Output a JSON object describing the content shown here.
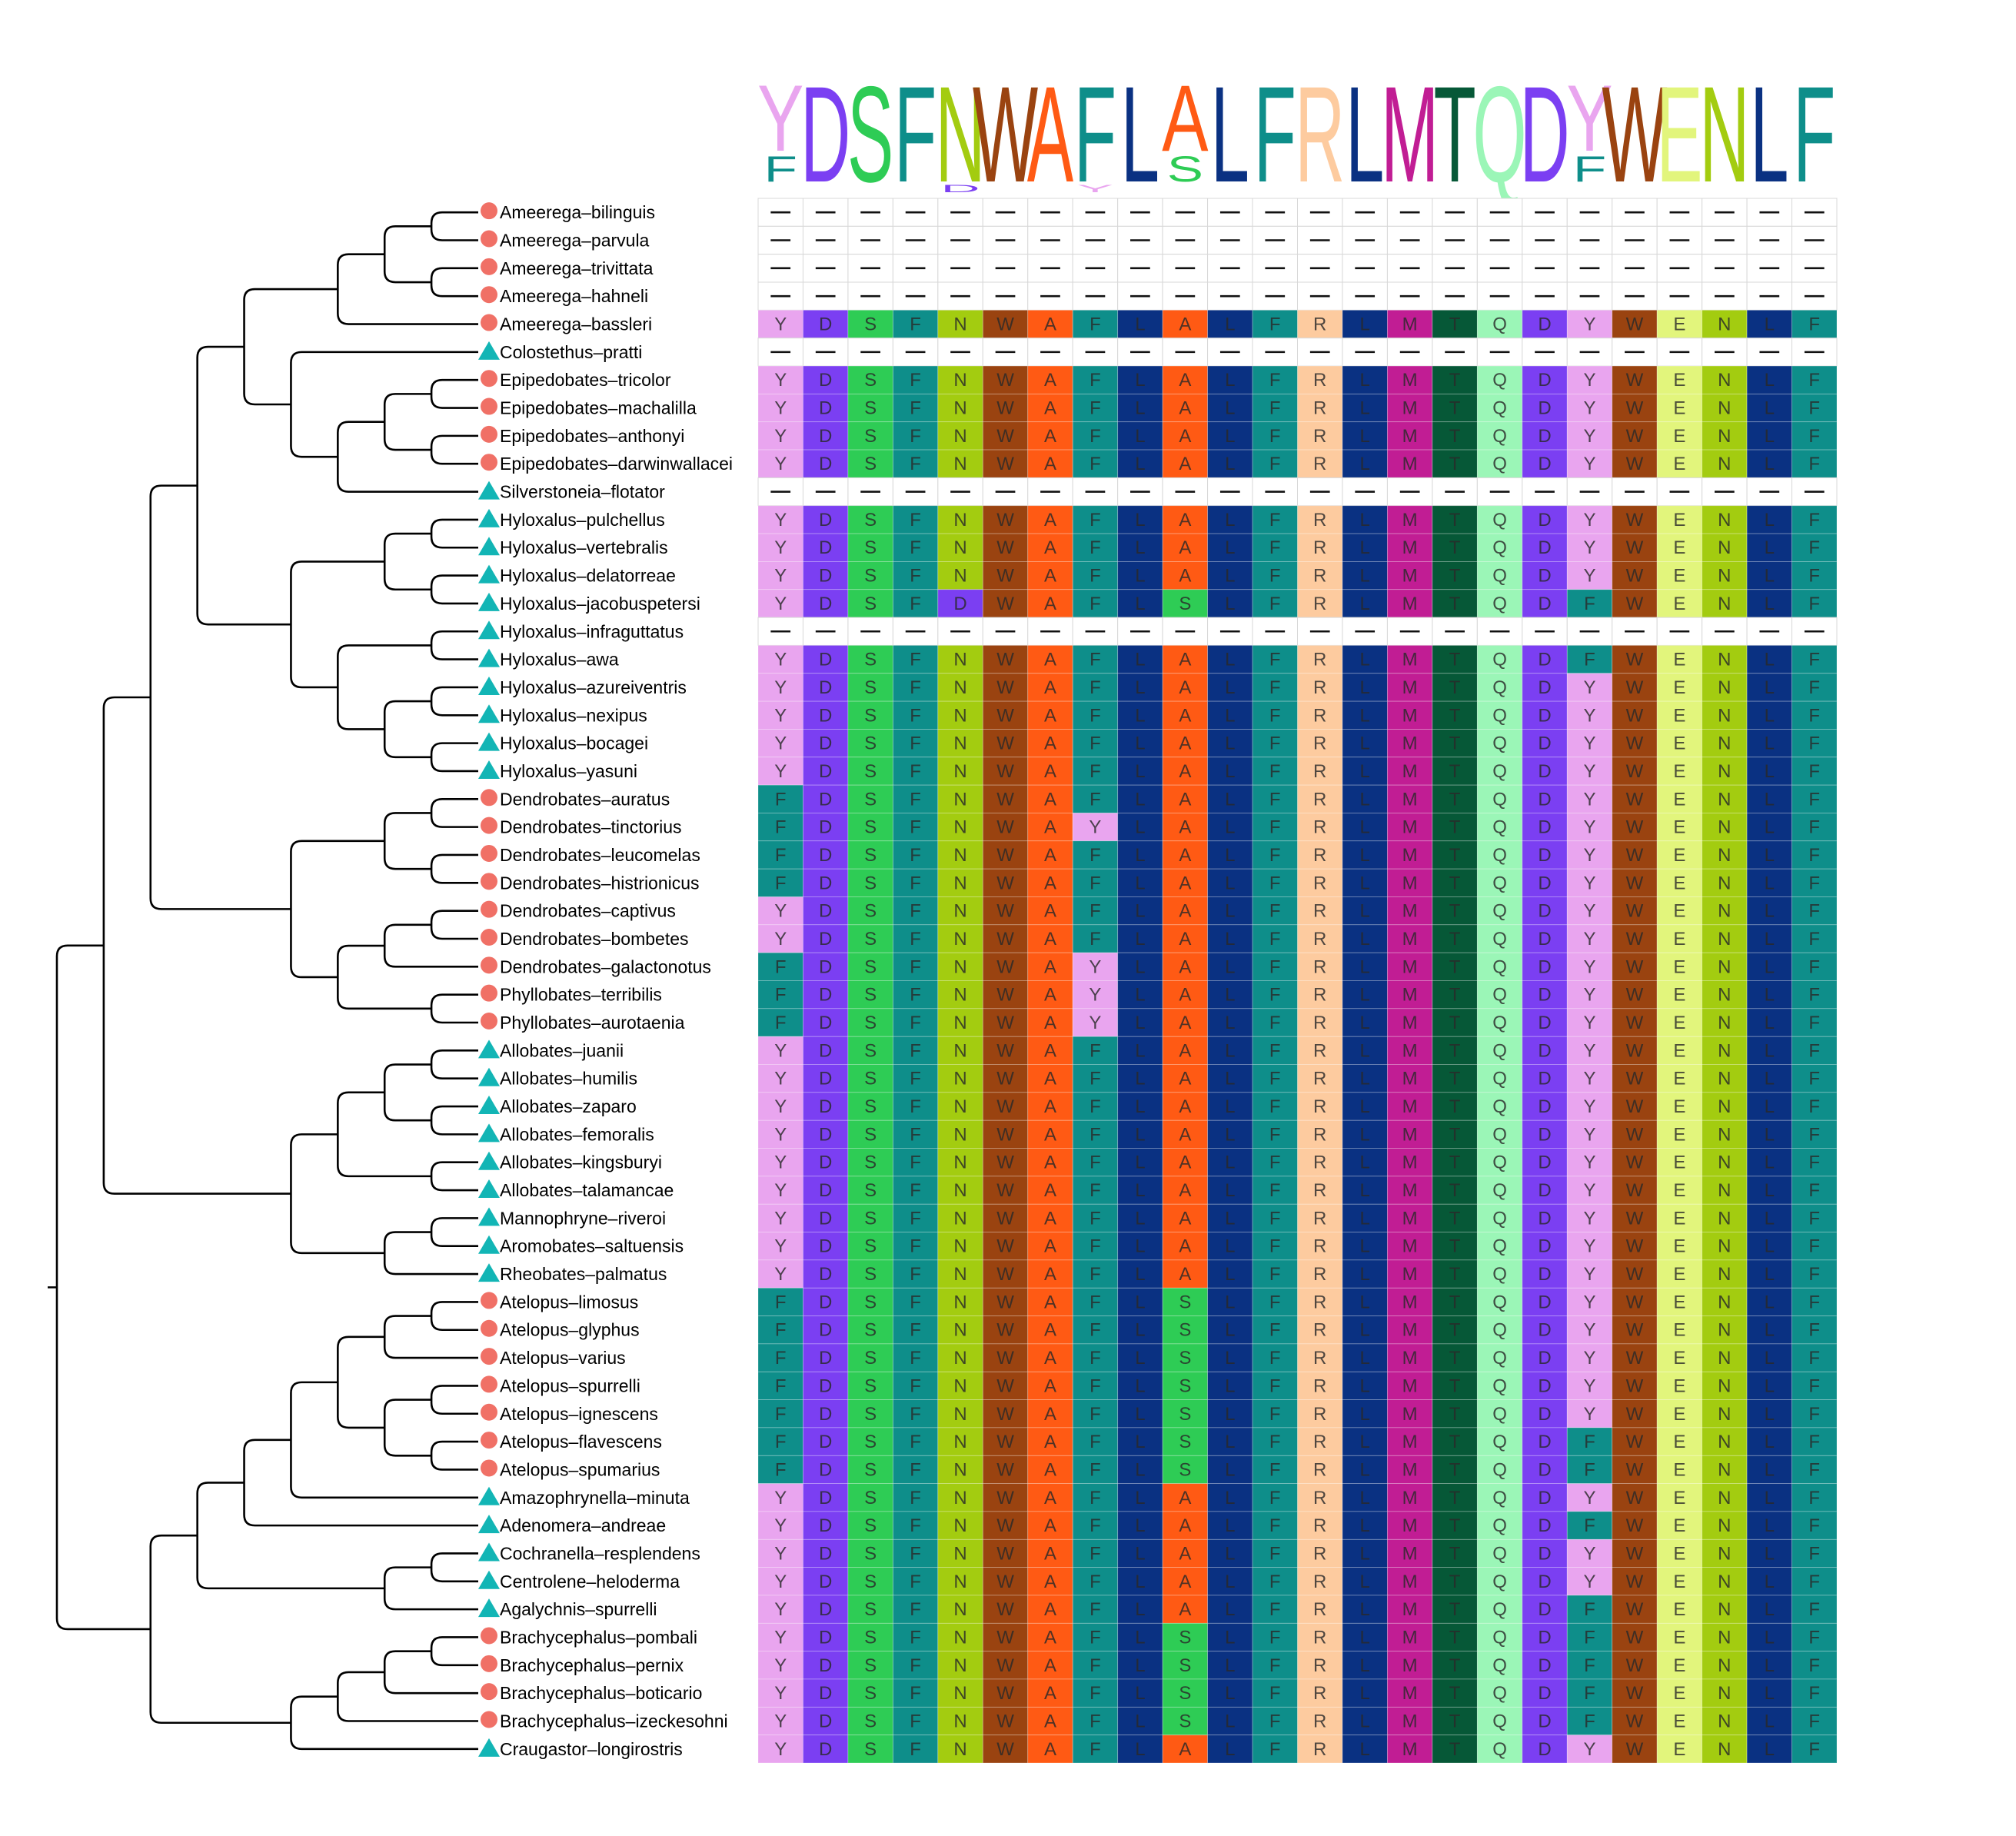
{
  "logo": [
    {
      "main": "Y",
      "minor": "F"
    },
    {
      "main": "D"
    },
    {
      "main": "S"
    },
    {
      "main": "F"
    },
    {
      "main": "N",
      "minor": "D",
      "minor_below": true
    },
    {
      "main": "W"
    },
    {
      "main": "A"
    },
    {
      "main": "F",
      "minor": "Y",
      "minor_below": true
    },
    {
      "main": "L"
    },
    {
      "main": "A",
      "minor": "S"
    },
    {
      "main": "L"
    },
    {
      "main": "F"
    },
    {
      "main": "R"
    },
    {
      "main": "L"
    },
    {
      "main": "M"
    },
    {
      "main": "T"
    },
    {
      "main": "Q"
    },
    {
      "main": "D"
    },
    {
      "main": "Y",
      "minor": "F"
    },
    {
      "main": "W"
    },
    {
      "main": "E"
    },
    {
      "main": "N"
    },
    {
      "main": "L"
    },
    {
      "main": "F"
    }
  ],
  "colors": {
    "Y": "#e9a5ef",
    "D": "#7b3ff2",
    "S": "#2ecc55",
    "F": "#0e8e8a",
    "N": "#a3cc10",
    "W": "#9a4310",
    "A": "#ff5a14",
    "L": "#0a3182",
    "R": "#fdcb9f",
    "M": "#c11d94",
    "T": "#065837",
    "Q": "#9bf6b7",
    "E": "#e2f57c",
    "gap": "#ffffff"
  },
  "markers": {
    "circle": "#f07066",
    "triangle": "#12b5b5"
  },
  "sequences": [
    {
      "name": "Ameerega–bilinguis",
      "marker": "circle",
      "seq": "------------------------"
    },
    {
      "name": "Ameerega–parvula",
      "marker": "circle",
      "seq": "------------------------"
    },
    {
      "name": "Ameerega–trivittata",
      "marker": "circle",
      "seq": "------------------------"
    },
    {
      "name": "Ameerega–hahneli",
      "marker": "circle",
      "seq": "------------------------"
    },
    {
      "name": "Ameerega–bassleri",
      "marker": "circle",
      "seq": "YDSFNWAFLALFRLMTQDYWENLF"
    },
    {
      "name": "Colostethus–pratti",
      "marker": "triangle",
      "seq": "------------------------"
    },
    {
      "name": "Epipedobates–tricolor",
      "marker": "circle",
      "seq": "YDSFNWAFLALFRLMTQDYWENLF"
    },
    {
      "name": "Epipedobates–machalilla",
      "marker": "circle",
      "seq": "YDSFNWAFLALFRLMTQDYWENLF"
    },
    {
      "name": "Epipedobates–anthonyi",
      "marker": "circle",
      "seq": "YDSFNWAFLALFRLMTQDYWENLF"
    },
    {
      "name": "Epipedobates–darwinwallacei",
      "marker": "circle",
      "seq": "YDSFNWAFLALFRLMTQDYWENLF"
    },
    {
      "name": "Silverstoneia–flotator",
      "marker": "triangle",
      "seq": "------------------------"
    },
    {
      "name": "Hyloxalus–pulchellus",
      "marker": "triangle",
      "seq": "YDSFNWAFLALFRLMTQDYWENLF"
    },
    {
      "name": "Hyloxalus–vertebralis",
      "marker": "triangle",
      "seq": "YDSFNWAFLALFRLMTQDYWENLF"
    },
    {
      "name": "Hyloxalus–delatorreae",
      "marker": "triangle",
      "seq": "YDSFNWAFLALFRLMTQDYWENLF"
    },
    {
      "name": "Hyloxalus–jacobuspetersi",
      "marker": "triangle",
      "seq": "YDSFDWAFLSLFRLMTQDFWENLF"
    },
    {
      "name": "Hyloxalus–infraguttatus",
      "marker": "triangle",
      "seq": "------------------------"
    },
    {
      "name": "Hyloxalus–awa",
      "marker": "triangle",
      "seq": "YDSFNWAFLALFRLMTQDFWENLF"
    },
    {
      "name": "Hyloxalus–azureiventris",
      "marker": "triangle",
      "seq": "YDSFNWAFLALFRLMTQDYWENLF"
    },
    {
      "name": "Hyloxalus–nexipus",
      "marker": "triangle",
      "seq": "YDSFNWAFLALFRLMTQDYWENLF"
    },
    {
      "name": "Hyloxalus–bocagei",
      "marker": "triangle",
      "seq": "YDSFNWAFLALFRLMTQDYWENLF"
    },
    {
      "name": "Hyloxalus–yasuni",
      "marker": "triangle",
      "seq": "YDSFNWAFLALFRLMTQDYWENLF"
    },
    {
      "name": "Dendrobates–auratus",
      "marker": "circle",
      "seq": "FDSFNWAFLALFRLMTQDYWENLF"
    },
    {
      "name": "Dendrobates–tinctorius",
      "marker": "circle",
      "seq": "FDSFNWAYLALFRLMTQDYWENLF"
    },
    {
      "name": "Dendrobates–leucomelas",
      "marker": "circle",
      "seq": "FDSFNWAFLALFRLMTQDYWENLF"
    },
    {
      "name": "Dendrobates–histrionicus",
      "marker": "circle",
      "seq": "FDSFNWAFLALFRLMTQDYWENLF"
    },
    {
      "name": "Dendrobates–captivus",
      "marker": "circle",
      "seq": "YDSFNWAFLALFRLMTQDYWENLF"
    },
    {
      "name": "Dendrobates–bombetes",
      "marker": "circle",
      "seq": "YDSFNWAFLALFRLMTQDYWENLF"
    },
    {
      "name": "Dendrobates–galactonotus",
      "marker": "circle",
      "seq": "FDSFNWAYLALFRLMTQDYWENLF"
    },
    {
      "name": "Phyllobates–terribilis",
      "marker": "circle",
      "seq": "FDSFNWAYLALFRLMTQDYWENLF"
    },
    {
      "name": "Phyllobates–aurotaenia",
      "marker": "circle",
      "seq": "FDSFNWAYLALFRLMTQDYWENLF"
    },
    {
      "name": "Allobates–juanii",
      "marker": "triangle",
      "seq": "YDSFNWAFLALFRLMTQDYWENLF"
    },
    {
      "name": "Allobates–humilis",
      "marker": "triangle",
      "seq": "YDSFNWAFLALFRLMTQDYWENLF"
    },
    {
      "name": "Allobates–zaparo",
      "marker": "triangle",
      "seq": "YDSFNWAFLALFRLMTQDYWENLF"
    },
    {
      "name": "Allobates–femoralis",
      "marker": "triangle",
      "seq": "YDSFNWAFLALFRLMTQDYWENLF"
    },
    {
      "name": "Allobates–kingsburyi",
      "marker": "triangle",
      "seq": "YDSFNWAFLALFRLMTQDYWENLF"
    },
    {
      "name": "Allobates–talamancae",
      "marker": "triangle",
      "seq": "YDSFNWAFLALFRLMTQDYWENLF"
    },
    {
      "name": "Mannophryne–riveroi",
      "marker": "triangle",
      "seq": "YDSFNWAFLALFRLMTQDYWENLF"
    },
    {
      "name": "Aromobates–saltuensis",
      "marker": "triangle",
      "seq": "YDSFNWAFLALFRLMTQDYWENLF"
    },
    {
      "name": "Rheobates–palmatus",
      "marker": "triangle",
      "seq": "YDSFNWAFLALFRLMTQDYWENLF"
    },
    {
      "name": "Atelopus–limosus",
      "marker": "circle",
      "seq": "FDSFNWAFLSLFRLMTQDYWENLF"
    },
    {
      "name": "Atelopus–glyphus",
      "marker": "circle",
      "seq": "FDSFNWAFLSLFRLMTQDYWENLF"
    },
    {
      "name": "Atelopus–varius",
      "marker": "circle",
      "seq": "FDSFNWAFLSLFRLMTQDYWENLF"
    },
    {
      "name": "Atelopus–spurrelli",
      "marker": "circle",
      "seq": "FDSFNWAFLSLFRLMTQDYWENLF"
    },
    {
      "name": "Atelopus–ignescens",
      "marker": "circle",
      "seq": "FDSFNWAFLSLFRLMTQDYWENLF"
    },
    {
      "name": "Atelopus–flavescens",
      "marker": "circle",
      "seq": "FDSFNWAFLSLFRLMTQDFWENLF"
    },
    {
      "name": "Atelopus–spumarius",
      "marker": "circle",
      "seq": "FDSFNWAFLSLFRLMTQDFWENLF"
    },
    {
      "name": "Amazophrynella–minuta",
      "marker": "triangle",
      "seq": "YDSFNWAFLALFRLMTQDYWENLF"
    },
    {
      "name": "Adenomera–andreae",
      "marker": "triangle",
      "seq": "YDSFNWAFLALFRLMTQDFWENLF"
    },
    {
      "name": "Cochranella–resplendens",
      "marker": "triangle",
      "seq": "YDSFNWAFLALFRLMTQDYWENLF"
    },
    {
      "name": "Centrolene–heloderma",
      "marker": "triangle",
      "seq": "YDSFNWAFLALFRLMTQDYWENLF"
    },
    {
      "name": "Agalychnis–spurrelli",
      "marker": "triangle",
      "seq": "YDSFNWAFLALFRLMTQDFWENLF"
    },
    {
      "name": "Brachycephalus–pombali",
      "marker": "circle",
      "seq": "YDSFNWAFLSLFRLMTQDFWENLF"
    },
    {
      "name": "Brachycephalus–pernix",
      "marker": "circle",
      "seq": "YDSFNWAFLSLFRLMTQDFWENLF"
    },
    {
      "name": "Brachycephalus–boticario",
      "marker": "circle",
      "seq": "YDSFNWAFLSLFRLMTQDFWENLF"
    },
    {
      "name": "Brachycephalus–izeckesohni",
      "marker": "circle",
      "seq": "YDSFNWAFLSLFRLMTQDFWENLF"
    },
    {
      "name": "Craugastor–longirostris",
      "marker": "triangle",
      "seq": "YDSFNWAFLALFRLMTQDYWENLF"
    }
  ],
  "tree": [
    {
      "id": "n1",
      "a": 0,
      "b": 1
    },
    {
      "id": "n2",
      "a": 2,
      "b": 3
    },
    {
      "id": "n3",
      "a": "n1",
      "b": "n2"
    },
    {
      "id": "n4",
      "a": "n3",
      "b": 4
    },
    {
      "id": "n5",
      "a": 6,
      "b": 7
    },
    {
      "id": "n6",
      "a": 8,
      "b": 9
    },
    {
      "id": "n7",
      "a": "n5",
      "b": "n6"
    },
    {
      "id": "n8",
      "a": "n7",
      "b": 10
    },
    {
      "id": "n9",
      "a": 5,
      "b": "n8"
    },
    {
      "id": "n10",
      "a": "n4",
      "b": "n9"
    },
    {
      "id": "n11",
      "a": 11,
      "b": 12
    },
    {
      "id": "n12",
      "a": 13,
      "b": 14
    },
    {
      "id": "n13",
      "a": "n11",
      "b": "n12"
    },
    {
      "id": "n14",
      "a": 15,
      "b": 16
    },
    {
      "id": "n15",
      "a": 17,
      "b": 18
    },
    {
      "id": "n16",
      "a": 19,
      "b": 20
    },
    {
      "id": "n17",
      "a": "n15",
      "b": "n16"
    },
    {
      "id": "n18",
      "a": "n14",
      "b": "n17"
    },
    {
      "id": "n19",
      "a": "n13",
      "b": "n18"
    },
    {
      "id": "n20",
      "a": "n10",
      "b": "n19"
    },
    {
      "id": "n21",
      "a": 21,
      "b": 22
    },
    {
      "id": "n22",
      "a": 23,
      "b": 24
    },
    {
      "id": "n23",
      "a": "n21",
      "b": "n22"
    },
    {
      "id": "n24",
      "a": 25,
      "b": 26
    },
    {
      "id": "n25",
      "a": "n24",
      "b": 27
    },
    {
      "id": "n26",
      "a": 28,
      "b": 29
    },
    {
      "id": "n27",
      "a": "n25",
      "b": "n26"
    },
    {
      "id": "n28",
      "a": "n23",
      "b": "n27"
    },
    {
      "id": "n29",
      "a": "n20",
      "b": "n28"
    },
    {
      "id": "n30",
      "a": 30,
      "b": 31
    },
    {
      "id": "n31",
      "a": 32,
      "b": 33
    },
    {
      "id": "n32",
      "a": "n30",
      "b": "n31"
    },
    {
      "id": "n33",
      "a": 34,
      "b": 35
    },
    {
      "id": "n34",
      "a": "n32",
      "b": "n33"
    },
    {
      "id": "n35",
      "a": 36,
      "b": 37
    },
    {
      "id": "n36",
      "a": "n35",
      "b": 38
    },
    {
      "id": "n37",
      "a": "n34",
      "b": "n36"
    },
    {
      "id": "n38",
      "a": "n29",
      "b": "n37"
    },
    {
      "id": "n39",
      "a": 39,
      "b": 40
    },
    {
      "id": "n40",
      "a": "n39",
      "b": 41
    },
    {
      "id": "n41",
      "a": 42,
      "b": 43
    },
    {
      "id": "n42",
      "a": 44,
      "b": 45
    },
    {
      "id": "n43",
      "a": "n41",
      "b": "n42"
    },
    {
      "id": "n44",
      "a": "n40",
      "b": "n43"
    },
    {
      "id": "n45",
      "a": "n44",
      "b": 46
    },
    {
      "id": "n46",
      "a": "n45",
      "b": 47
    },
    {
      "id": "n47",
      "a": 48,
      "b": 49
    },
    {
      "id": "n48",
      "a": "n47",
      "b": 50
    },
    {
      "id": "n49",
      "a": "n46",
      "b": "n48"
    },
    {
      "id": "n50",
      "a": 51,
      "b": 52
    },
    {
      "id": "n51",
      "a": "n50",
      "b": 53
    },
    {
      "id": "n52",
      "a": "n51",
      "b": 54
    },
    {
      "id": "n53",
      "a": "n52",
      "b": 55
    },
    {
      "id": "n54",
      "a": "n49",
      "b": "n53"
    },
    {
      "id": "n55",
      "a": "n38",
      "b": "n54"
    }
  ]
}
